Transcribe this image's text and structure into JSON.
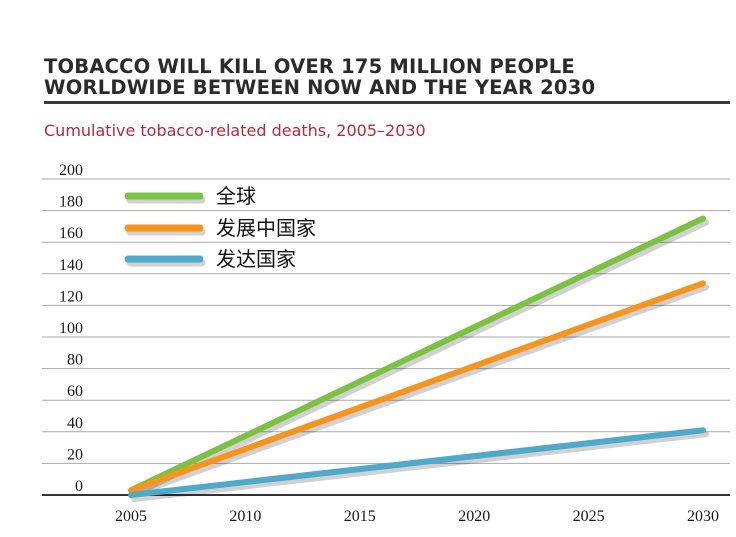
{
  "header": {
    "title_line1": "TOBACCO WILL KILL OVER 175 MILLION PEOPLE",
    "title_line2": "WORLDWIDE BETWEEN NOW AND THE YEAR 2030",
    "subtitle": "Cumulative tobacco-related deaths, 2005–2030"
  },
  "chart_data": {
    "type": "line",
    "title": "TOBACCO WILL KILL OVER 175 MILLION PEOPLE WORLDWIDE BETWEEN NOW AND THE YEAR 2030",
    "subtitle": "Cumulative tobacco-related deaths, 2005–2030",
    "x": [
      2005,
      2030
    ],
    "xticks": [
      "2005",
      "2010",
      "2015",
      "2020",
      "2025",
      "2030"
    ],
    "yticks": [
      "0",
      "20",
      "40",
      "60",
      "80",
      "100",
      "120",
      "140",
      "160",
      "180",
      "200"
    ],
    "xlim": [
      2005,
      2030
    ],
    "ylim": [
      0,
      200
    ],
    "grid": "horizontal",
    "legend_position": "top-left",
    "series": [
      {
        "name": "全球",
        "color": "#7cc242",
        "values": [
          3,
          175
        ]
      },
      {
        "name": "发展中国家",
        "color": "#f7941d",
        "values": [
          3,
          134
        ]
      },
      {
        "name": "发达国家",
        "color": "#4fa9c9",
        "values": [
          0,
          41
        ]
      }
    ]
  }
}
